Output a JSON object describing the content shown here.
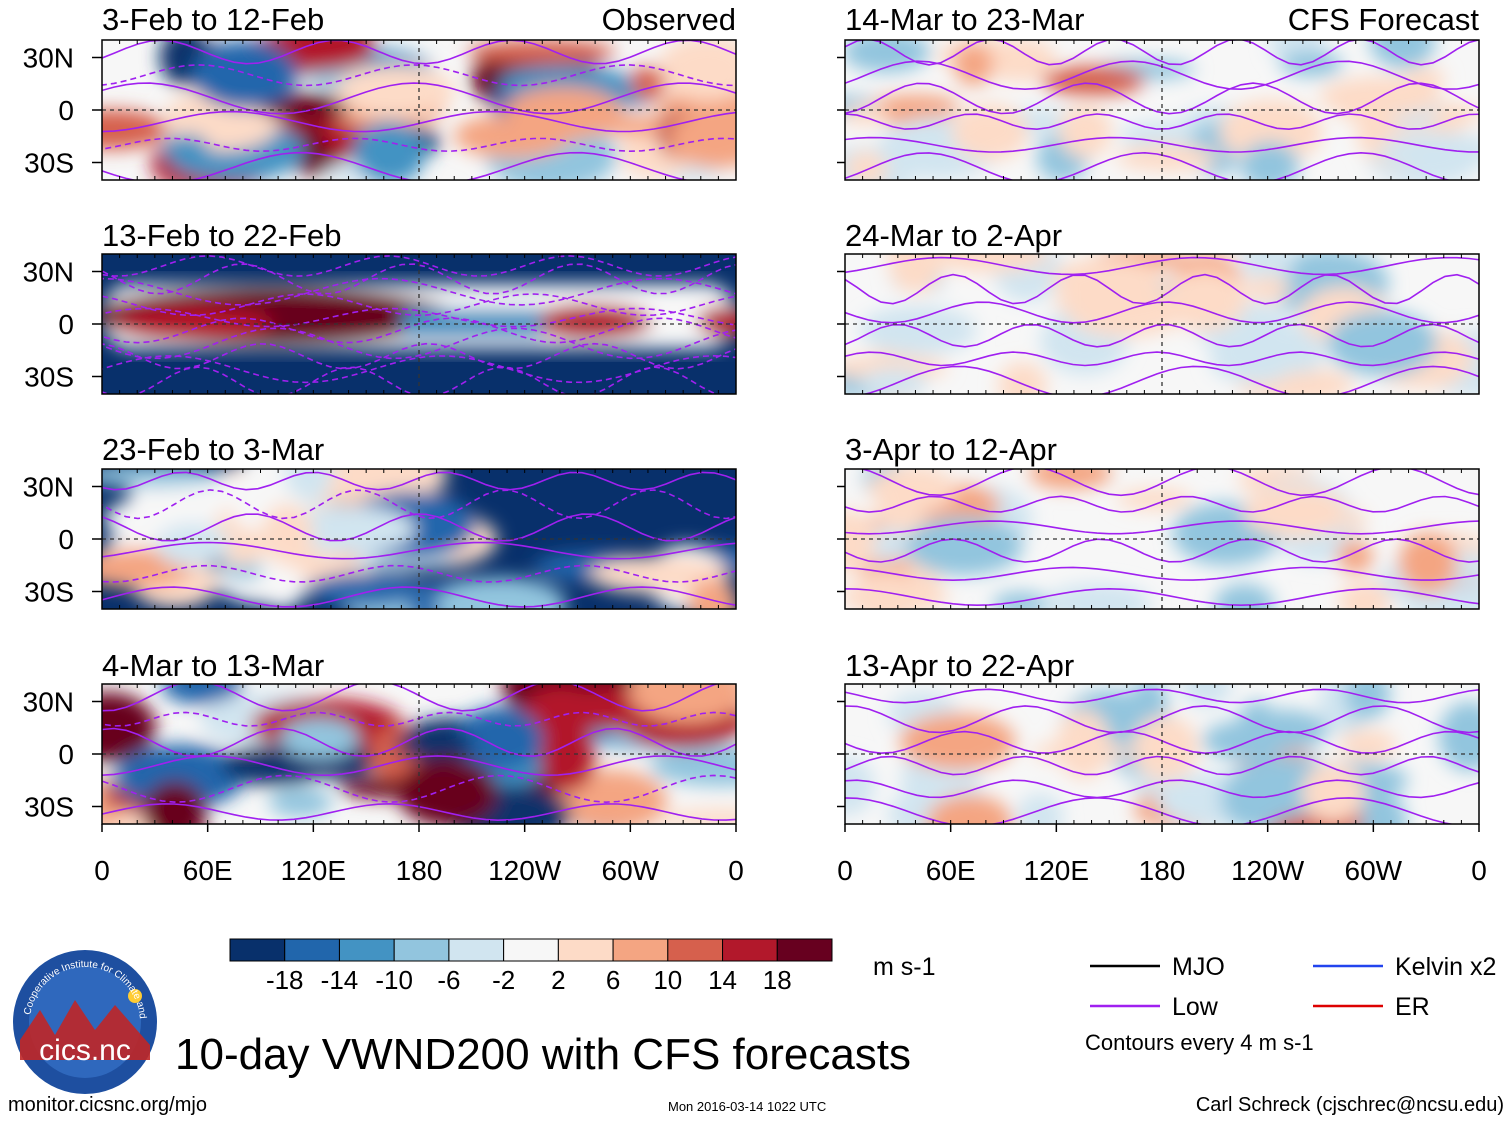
{
  "chart_data": {
    "type": "heatmap",
    "title": "10-day VWND200 with CFS forecasts",
    "variable": "VWND200",
    "units": "m s-1",
    "panel_headers": {
      "left": "Observed",
      "right": "CFS Forecast"
    },
    "x_ticks": [
      "0",
      "60E",
      "120E",
      "180",
      "120W",
      "60W",
      "0"
    ],
    "x_tick_degrees": [
      0,
      60,
      120,
      180,
      240,
      300,
      360
    ],
    "y_ticks": [
      "30N",
      "0",
      "30S"
    ],
    "y_tick_degrees": [
      30,
      0,
      -30
    ],
    "ylim": [
      -40,
      40
    ],
    "xlim": [
      0,
      360
    ],
    "panels": [
      {
        "column": "observed",
        "label": "3-Feb to 12-Feb",
        "style": "mixed"
      },
      {
        "column": "observed",
        "label": "13-Feb to 22-Feb",
        "style": "strong"
      },
      {
        "column": "observed",
        "label": "23-Feb to 3-Mar",
        "style": "mixed-negative"
      },
      {
        "column": "observed",
        "label": "4-Mar to 13-Mar",
        "style": "mixed"
      },
      {
        "column": "forecast",
        "label": "14-Mar to 23-Mar",
        "style": "weak"
      },
      {
        "column": "forecast",
        "label": "24-Mar to 2-Apr",
        "style": "weak"
      },
      {
        "column": "forecast",
        "label": "3-Apr to 12-Apr",
        "style": "weak"
      },
      {
        "column": "forecast",
        "label": "13-Apr to 22-Apr",
        "style": "weak"
      }
    ],
    "colorbar": {
      "tick_labels": [
        "-18",
        "-14",
        "-10",
        "-6",
        "-2",
        "2",
        "6",
        "10",
        "14",
        "18"
      ],
      "colors": [
        "#08306b",
        "#2166ac",
        "#4393c3",
        "#92c5de",
        "#d1e5f0",
        "#f7f7f7",
        "#fddbc7",
        "#f4a582",
        "#d6604d",
        "#b2182b",
        "#67001f"
      ]
    },
    "contour_legend": [
      {
        "label": "MJO",
        "color": "#000000"
      },
      {
        "label": "Kelvin x2",
        "color": "#2244ee"
      },
      {
        "label": "Low",
        "color": "#a020f0"
      },
      {
        "label": "ER",
        "color": "#dd0000"
      }
    ],
    "contour_note": "Contours every 4 m s-1"
  },
  "logo": {
    "text": "cics.nc",
    "ring_text": "Cooperative Institute for Climate and Satellites"
  },
  "footer": {
    "left": "monitor.cicsnc.org/mjo",
    "center": "Mon 2016-03-14 1022 UTC",
    "right": "Carl Schreck (cjschrec@ncsu.edu)"
  }
}
